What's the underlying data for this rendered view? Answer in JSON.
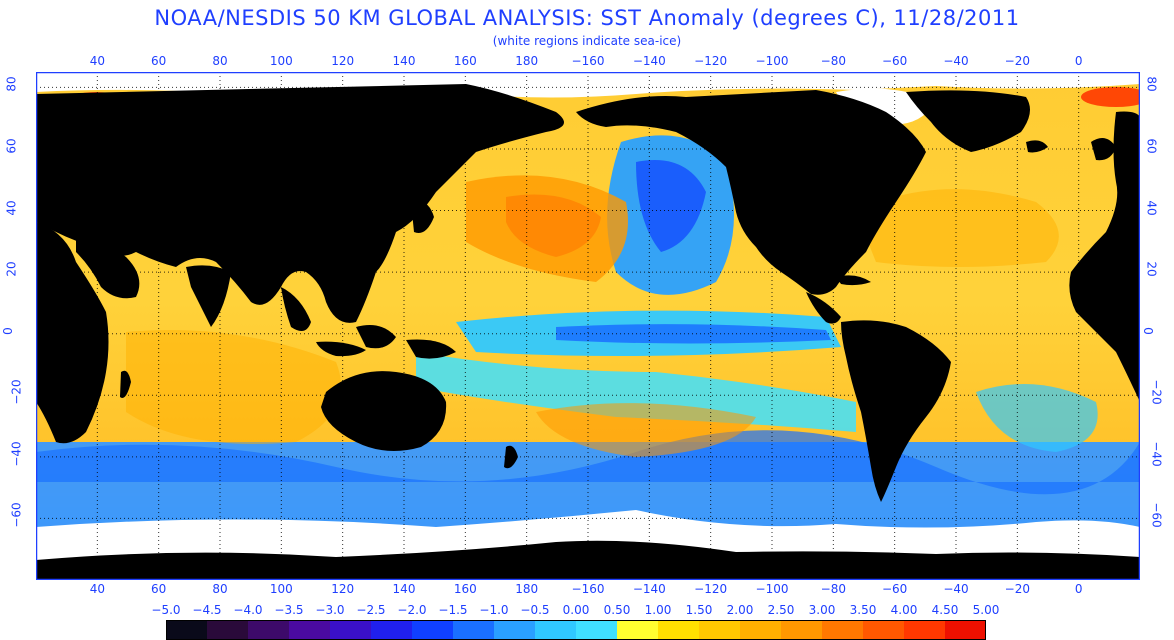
{
  "header": {
    "title": "NOAA/NESDIS 50 KM GLOBAL ANALYSIS: SST Anomaly (degrees C), 11/28/2011",
    "subtitle": "(white regions indicate sea-ice)"
  },
  "map": {
    "projection": "equirectangular",
    "lon_range": [
      20,
      380
    ],
    "lat_range": [
      -80,
      85
    ],
    "x_ticks": [
      "40",
      "60",
      "80",
      "100",
      "120",
      "140",
      "160",
      "180",
      "−160",
      "−140",
      "−120",
      "−100",
      "−80",
      "−60",
      "−40",
      "−20",
      "0"
    ],
    "y_ticks_left": [
      "80",
      "60",
      "40",
      "20",
      "0",
      "−20",
      "−40",
      "−60"
    ],
    "y_ticks_right": [
      "80",
      "60",
      "40",
      "20",
      "0",
      "−20",
      "−40",
      "−60"
    ],
    "colors": {
      "land": "#000000",
      "sea_ice": "#ffffff",
      "frame": "#1f3fff",
      "grid": "#000000"
    }
  },
  "legend": {
    "labels": [
      "−5.0",
      "−4.5",
      "−4.0",
      "−3.5",
      "−3.0",
      "−2.5",
      "−2.0",
      "−1.5",
      "−1.0",
      "−0.5",
      "0.00",
      "0.50",
      "1.00",
      "1.50",
      "2.00",
      "2.50",
      "3.00",
      "3.50",
      "4.00",
      "4.50",
      "5.00"
    ],
    "colors": [
      "#0a0a1a",
      "#2a0a3a",
      "#3d0a6a",
      "#4a0aa0",
      "#3a10c8",
      "#2020ee",
      "#1040ff",
      "#1a70ff",
      "#2aa0ff",
      "#30c8ff",
      "#40e0ff",
      "#ffff30",
      "#ffe000",
      "#ffc800",
      "#ffb000",
      "#ff9800",
      "#ff7800",
      "#ff5800",
      "#ff3800",
      "#ee1000"
    ]
  }
}
